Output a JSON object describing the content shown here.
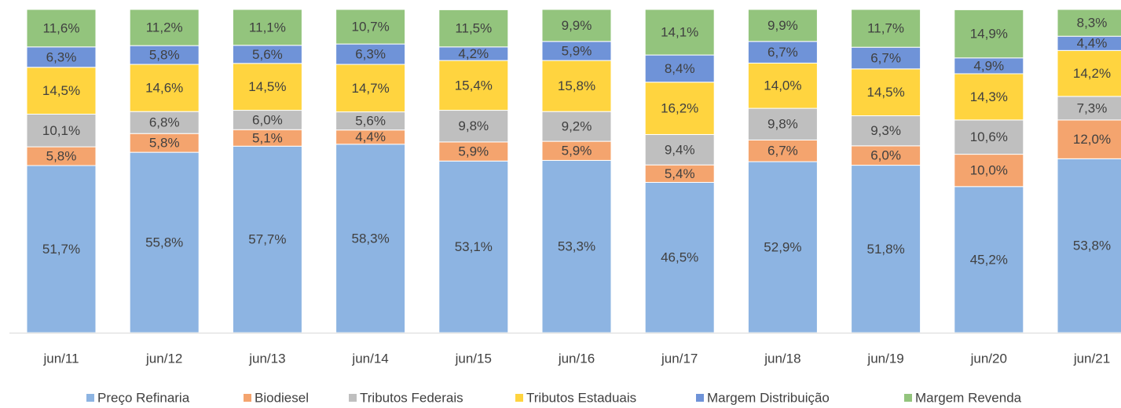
{
  "chart_data": {
    "type": "stacked_bar",
    "categories": [
      "jun/11",
      "jun/12",
      "jun/13",
      "jun/14",
      "jun/15",
      "jun/16",
      "jun/17",
      "jun/18",
      "jun/19",
      "jun/20",
      "jun/21"
    ],
    "ylim": [
      0,
      100
    ],
    "legend": "bottom",
    "series": [
      {
        "name": "Preço Refinaria",
        "color": "#8db4e2",
        "values": [
          51.7,
          55.8,
          57.7,
          58.3,
          53.1,
          53.3,
          46.5,
          52.9,
          51.8,
          45.2,
          53.8
        ],
        "value_labels": [
          "51,7%",
          "55,8%",
          "57,7%",
          "58,3%",
          "53,1%",
          "53,3%",
          "46,5%",
          "52,9%",
          "51,8%",
          "45,2%",
          "53,8%"
        ]
      },
      {
        "name": "Biodiesel",
        "color": "#f4a46e",
        "values": [
          5.8,
          5.8,
          5.1,
          4.4,
          5.9,
          5.9,
          5.4,
          6.7,
          6.0,
          10.0,
          12.0
        ],
        "value_labels": [
          "5,8%",
          "5,8%",
          "5,1%",
          "4,4%",
          "5,9%",
          "5,9%",
          "5,4%",
          "6,7%",
          "6,0%",
          "10,0%",
          "12,0%"
        ]
      },
      {
        "name": "Tributos Federais",
        "color": "#bfbfbf",
        "values": [
          10.1,
          6.8,
          6.0,
          5.6,
          9.8,
          9.2,
          9.4,
          9.8,
          9.3,
          10.6,
          7.3
        ],
        "value_labels": [
          "10,1%",
          "6,8%",
          "6,0%",
          "5,6%",
          "9,8%",
          "9,2%",
          "9,4%",
          "9,8%",
          "9,3%",
          "10,6%",
          "7,3%"
        ]
      },
      {
        "name": "Tributos Estaduais",
        "color": "#ffd43f",
        "values": [
          14.5,
          14.6,
          14.5,
          14.7,
          15.4,
          15.8,
          16.2,
          14.0,
          14.5,
          14.3,
          14.2
        ],
        "value_labels": [
          "14,5%",
          "14,6%",
          "14,5%",
          "14,7%",
          "15,4%",
          "15,8%",
          "16,2%",
          "14,0%",
          "14,5%",
          "14,3%",
          "14,2%"
        ]
      },
      {
        "name": "Margem Distribuição",
        "color": "#6f93d8",
        "values": [
          6.3,
          5.8,
          5.6,
          6.3,
          4.2,
          5.9,
          8.4,
          6.7,
          6.7,
          4.9,
          4.4
        ],
        "value_labels": [
          "6,3%",
          "5,8%",
          "5,6%",
          "6,3%",
          "4,2%",
          "5,9%",
          "8,4%",
          "6,7%",
          "6,7%",
          "4,9%",
          "4,4%"
        ]
      },
      {
        "name": "Margem Revenda",
        "color": "#93c47d",
        "values": [
          11.6,
          11.2,
          11.1,
          10.7,
          11.5,
          9.9,
          14.1,
          9.9,
          11.7,
          14.9,
          8.3
        ],
        "value_labels": [
          "11,6%",
          "11,2%",
          "11,1%",
          "10,7%",
          "11,5%",
          "9,9%",
          "14,1%",
          "9,9%",
          "11,7%",
          "14,9%",
          "8,3%"
        ]
      }
    ]
  }
}
